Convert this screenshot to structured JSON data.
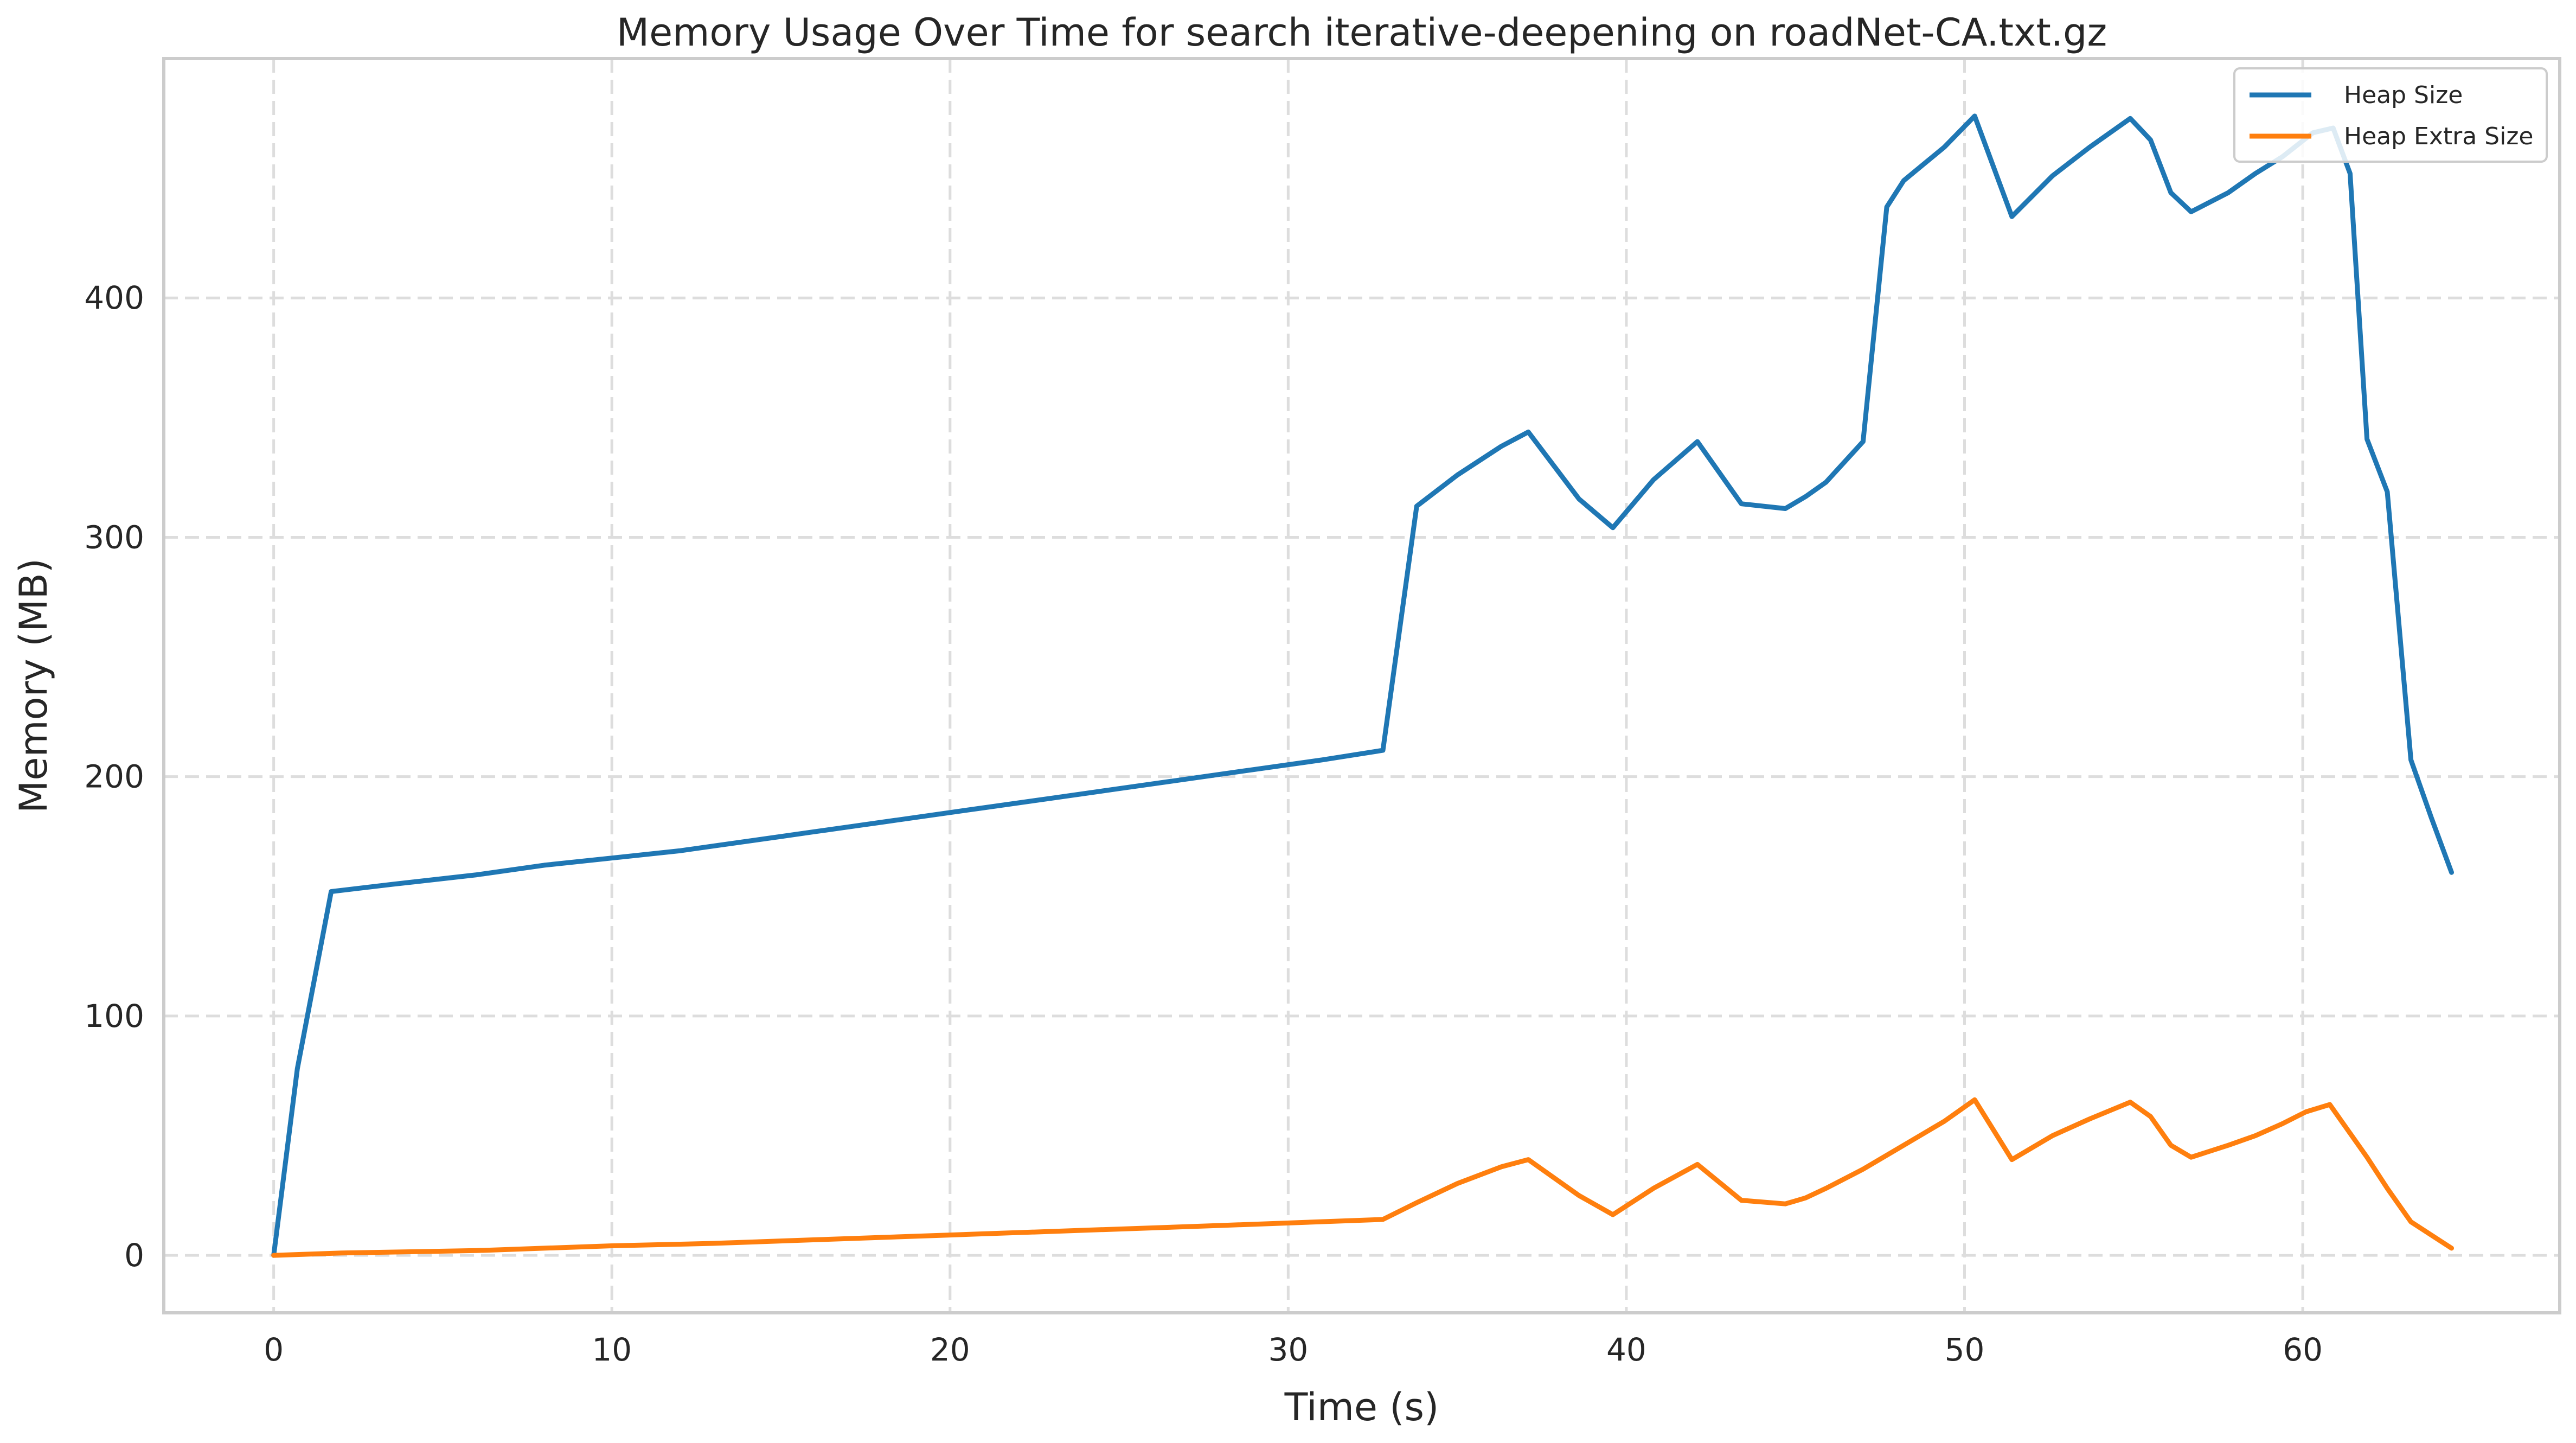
{
  "chart_data": {
    "type": "line",
    "title": "Memory Usage Over Time for search iterative-deepening on roadNet-CA.txt.gz",
    "xlabel": "Time (s)",
    "ylabel": "Memory (MB)",
    "xlim": [
      -3.25,
      67.6
    ],
    "ylim": [
      -24,
      500
    ],
    "xticks": [
      0,
      10,
      20,
      30,
      40,
      50,
      60
    ],
    "yticks": [
      0,
      100,
      200,
      300,
      400
    ],
    "grid": true,
    "legend": "upper right",
    "series": [
      {
        "name": "Heap Size",
        "color": "#1f77b4",
        "x": [
          0,
          0.7,
          1.7,
          3.5,
          6,
          8,
          10,
          12,
          13,
          15,
          16,
          17,
          18,
          20,
          21,
          23,
          25,
          27,
          29,
          31,
          32.8,
          33.8,
          35,
          36.3,
          37.1,
          38.6,
          39.6,
          40.8,
          42.1,
          43.4,
          44.7,
          45.3,
          45.9,
          47.0,
          47.7,
          48.2,
          49.4,
          50.3,
          51.4,
          52.6,
          53.7,
          54.9,
          55.5,
          56.1,
          56.7,
          57.8,
          58.6,
          59.4,
          60.3,
          60.9,
          61.4,
          61.9,
          62.5,
          63.2,
          63.8,
          64.4
        ],
        "y": [
          0,
          78,
          152,
          155,
          159,
          163,
          166,
          169,
          171,
          175,
          177,
          179,
          181,
          185,
          187,
          191,
          195,
          199,
          203,
          207,
          211,
          313,
          326,
          338,
          344,
          316,
          304,
          324,
          340,
          314,
          312,
          317,
          323,
          340,
          438,
          449,
          463,
          476,
          434,
          451,
          463,
          475,
          466,
          444,
          436,
          444,
          452,
          459,
          469,
          471,
          452,
          341,
          319,
          207,
          183,
          160
        ]
      },
      {
        "name": "Heap Extra Size",
        "color": "#ff7f0e",
        "x": [
          0,
          2,
          6,
          10,
          13,
          16,
          20,
          24,
          28,
          32.8,
          33.8,
          35,
          36.3,
          37.1,
          38.6,
          39.6,
          40.8,
          42.1,
          43.4,
          44.7,
          45.3,
          45.9,
          47.0,
          48.2,
          49.4,
          50.3,
          51.4,
          52.6,
          53.7,
          54.9,
          55.5,
          56.1,
          56.7,
          57.8,
          58.6,
          59.4,
          60.1,
          60.8,
          61.9,
          62.5,
          63.2,
          64.4
        ],
        "y": [
          0,
          1,
          2,
          4,
          5,
          6.5,
          8.5,
          10.5,
          12.5,
          15,
          22,
          30,
          37,
          40,
          25,
          17,
          28,
          38,
          23,
          21.5,
          24,
          28,
          36,
          46,
          56,
          65,
          40,
          50,
          57,
          64,
          58,
          46,
          41,
          46,
          50,
          55,
          60,
          63,
          41,
          28,
          14,
          3
        ]
      }
    ]
  }
}
